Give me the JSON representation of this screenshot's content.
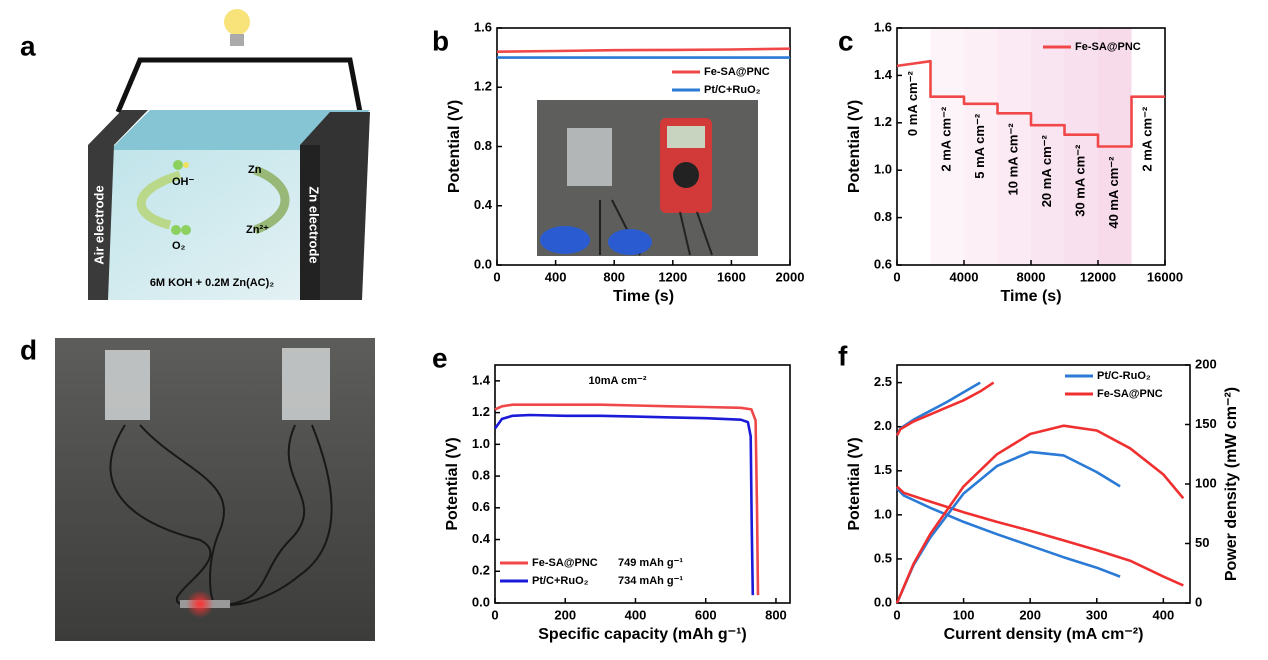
{
  "panel_labels": [
    "a",
    "b",
    "c",
    "d",
    "e",
    "f"
  ],
  "diagram": {
    "left_electrode": "Air electrode",
    "right_electrode": "Zn electrode",
    "species": [
      "OH⁻",
      "O₂",
      "Zn",
      "Zn²⁺"
    ],
    "electrolyte": "6M KOH + 0.2M Zn(AC)₂"
  },
  "chart_data": [
    {
      "type": "line",
      "xlabel": "Time (s)",
      "ylabel": "Potential (V)",
      "x": [
        0,
        400,
        800,
        1200,
        1600,
        2000
      ],
      "series": [
        {
          "name": "Fe-SA@PNC",
          "color": "#f04848",
          "values": [
            1.44,
            1.445,
            1.45,
            1.452,
            1.455,
            1.46
          ]
        },
        {
          "name": "Pt/C+RuO₂",
          "color": "#2a7ad6",
          "values": [
            1.4,
            1.4,
            1.4,
            1.4,
            1.4,
            1.4
          ]
        }
      ],
      "xlim": [
        0,
        2000
      ],
      "xticks": [
        0,
        400,
        800,
        1200,
        1600,
        2000
      ],
      "ylim": [
        0,
        1.6
      ],
      "yticks": [
        {
          "value": 0,
          "label": "0.0"
        },
        0.4,
        0.8,
        1.2,
        1.6
      ],
      "legend": "upper right",
      "grid": false
    },
    {
      "type": "line",
      "xlabel": "Time (s)",
      "ylabel": "Potential (V)",
      "x": [
        0,
        2000,
        2000,
        4000,
        4000,
        6000,
        6000,
        8000,
        8000,
        10000,
        10000,
        12000,
        12000,
        14000,
        14000,
        16000
      ],
      "series": [
        {
          "name": "Fe-SA@PNC",
          "color": "#f04848",
          "values": [
            1.44,
            1.46,
            1.31,
            1.31,
            1.28,
            1.28,
            1.24,
            1.24,
            1.19,
            1.19,
            1.15,
            1.15,
            1.1,
            1.1,
            1.31,
            1.31
          ]
        }
      ],
      "annotations": [
        "0 mA cm⁻²",
        "2 mA cm⁻²",
        "5 mA cm⁻²",
        "10 mA cm⁻²",
        "20 mA cm⁻²",
        "30 mA cm⁻²",
        "40 mA cm⁻²",
        "2 mA cm⁻²"
      ],
      "xlim": [
        0,
        16000
      ],
      "xticks": [
        0,
        4000,
        8000,
        12000,
        16000
      ],
      "ylim": [
        0.6,
        1.6
      ],
      "yticks": [
        0.6,
        0.8,
        {
          "value": 1,
          "label": "1.0"
        },
        1.2,
        1.4,
        1.6
      ],
      "legend": "upper right",
      "grid": false
    },
    {
      "type": "line",
      "xlabel": "Specific capacity (mAh g⁻¹)",
      "ylabel": "Potential (V)",
      "annotations": [
        "10mA cm⁻²"
      ],
      "series": [
        {
          "name": "Fe-SA@PNC",
          "note": "749 mAh g⁻¹",
          "color": "#f04848",
          "x": [
            0,
            20,
            50,
            100,
            200,
            300,
            400,
            500,
            600,
            700,
            730,
            742,
            746,
            749
          ],
          "values": [
            1.22,
            1.24,
            1.25,
            1.25,
            1.25,
            1.25,
            1.245,
            1.24,
            1.235,
            1.23,
            1.22,
            1.15,
            0.6,
            0.05
          ]
        },
        {
          "name": "Pt/C+RuO₂",
          "note": "734 mAh g⁻¹",
          "color": "#1a1ad8",
          "x": [
            0,
            20,
            50,
            100,
            200,
            300,
            400,
            500,
            600,
            700,
            720,
            728,
            731,
            734
          ],
          "values": [
            1.1,
            1.16,
            1.18,
            1.185,
            1.18,
            1.18,
            1.175,
            1.17,
            1.165,
            1.155,
            1.14,
            1.05,
            0.5,
            0.05
          ]
        }
      ],
      "xlim": [
        0,
        840
      ],
      "xticks": [
        0,
        200,
        400,
        600,
        800
      ],
      "ylim": [
        0,
        1.5
      ],
      "yticks": [
        {
          "value": 0,
          "label": "0.0"
        },
        0.2,
        0.4,
        0.6,
        0.8,
        {
          "value": 1,
          "label": "1.0"
        },
        1.2,
        1.4
      ],
      "legend": "lower left",
      "grid": false
    },
    {
      "type": "line",
      "xlabel": "Current density (mA cm⁻²)",
      "ylabel": "Potential (V)",
      "y2label": "Power density (mW cm⁻²)",
      "series": [
        {
          "name": "Pt/C-RuO₂",
          "color": "#2a7ad6",
          "x": [
            0,
            10,
            50,
            100,
            150,
            200,
            250,
            300,
            335
          ],
          "values": [
            1.3,
            1.22,
            1.08,
            0.92,
            0.78,
            0.65,
            0.52,
            0.4,
            0.3
          ]
        },
        {
          "name": "Fe-SA@PNC",
          "color": "#f03030",
          "x": [
            0,
            10,
            50,
            100,
            150,
            200,
            250,
            300,
            350,
            400,
            430
          ],
          "values": [
            1.32,
            1.25,
            1.15,
            1.03,
            0.92,
            0.82,
            0.71,
            0.6,
            0.48,
            0.3,
            0.2
          ]
        },
        {
          "name": "Pt/C-RuO₂",
          "color": "#2a7ad6",
          "x": [
            0,
            5,
            25,
            50,
            75,
            100,
            125
          ],
          "values": [
            1.9,
            1.98,
            2.08,
            2.18,
            2.28,
            2.39,
            2.5
          ]
        },
        {
          "name": "Fe-SA@PNC",
          "color": "#f03030",
          "x": [
            0,
            5,
            25,
            50,
            75,
            100,
            125,
            145
          ],
          "values": [
            1.9,
            1.97,
            2.06,
            2.14,
            2.22,
            2.3,
            2.4,
            2.5
          ]
        },
        {
          "name": "Pt/C-RuO₂",
          "color": "#2a7ad6",
          "axis": "y2",
          "x": [
            0,
            25,
            50,
            100,
            150,
            200,
            250,
            300,
            335
          ],
          "values": [
            0,
            32,
            55,
            92,
            115,
            127,
            124,
            110,
            98
          ]
        },
        {
          "name": "Fe-SA@PNC",
          "color": "#f03030",
          "axis": "y2",
          "x": [
            0,
            25,
            50,
            100,
            150,
            200,
            250,
            300,
            350,
            400,
            430
          ],
          "values": [
            0,
            33,
            58,
            98,
            125,
            142,
            149,
            145,
            130,
            108,
            88
          ]
        }
      ],
      "xlim": [
        0,
        440
      ],
      "xticks": [
        0,
        100,
        200,
        300,
        400
      ],
      "ylim": [
        0,
        2.7
      ],
      "yticks": [
        {
          "value": 0,
          "label": "0.0"
        },
        0.5,
        {
          "value": 1,
          "label": "1.0"
        },
        1.5,
        {
          "value": 2,
          "label": "2.0"
        },
        2.5
      ],
      "y2lim": [
        0,
        200
      ],
      "y2ticks": [
        0,
        50,
        100,
        150,
        200
      ],
      "legend": "upper right",
      "grid": false
    }
  ]
}
